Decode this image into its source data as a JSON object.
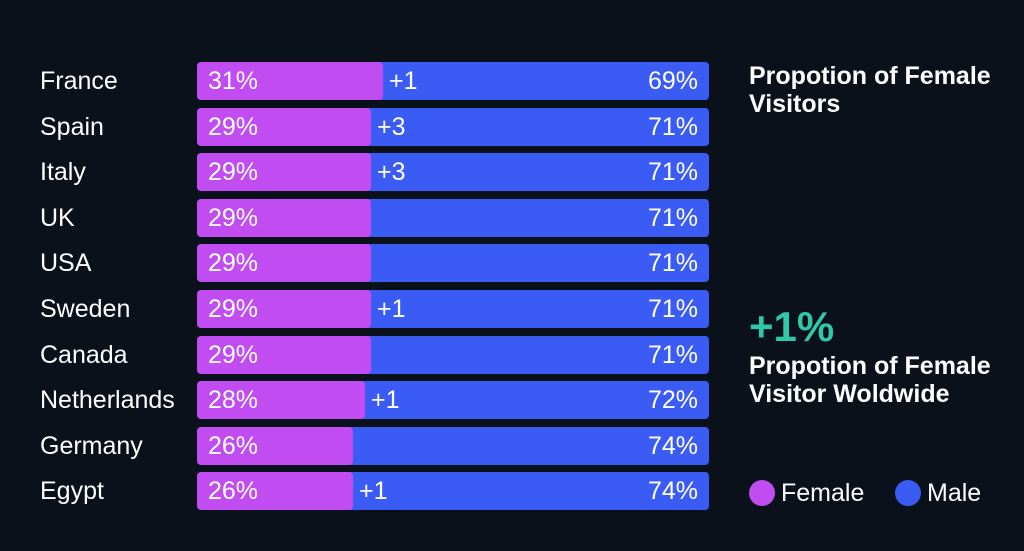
{
  "chart_data": {
    "type": "bar",
    "categories": [
      "France",
      "Spain",
      "Italy",
      "UK",
      "USA",
      "Sweden",
      "Canada",
      "Netherlands",
      "Germany",
      "Egypt"
    ],
    "series": [
      {
        "name": "Female",
        "values": [
          31,
          29,
          29,
          29,
          29,
          29,
          29,
          28,
          26,
          26
        ],
        "labels": [
          "31%",
          "29%",
          "29%",
          "29%",
          "29%",
          "29%",
          "29%",
          "28%",
          "26%",
          "26%"
        ]
      },
      {
        "name": "Male",
        "values": [
          69,
          71,
          71,
          71,
          71,
          71,
          71,
          72,
          74,
          74
        ],
        "labels": [
          "69%",
          "71%",
          "71%",
          "71%",
          "71%",
          "71%",
          "71%",
          "72%",
          "74%",
          "74%"
        ]
      }
    ],
    "changes": [
      "+1",
      "+3",
      "+3",
      "",
      "",
      "+1",
      "",
      "+1",
      "",
      "+1"
    ],
    "stacked": true,
    "orientation": "horizontal",
    "ylim": [
      0,
      100
    ]
  },
  "side": {
    "title": "Propotion of Female Visitors",
    "kpi_value": "+1%",
    "kpi_text": "Propotion of Female Visitor Woldwide"
  },
  "legend": [
    {
      "label": "Female",
      "color": "#c04cf2"
    },
    {
      "label": "Male",
      "color": "#3b5bf5"
    }
  ],
  "colors": {
    "female": "#c04cf2",
    "male": "#3b5bf5",
    "accent": "#2fc8a8",
    "background": "#0a111b"
  }
}
